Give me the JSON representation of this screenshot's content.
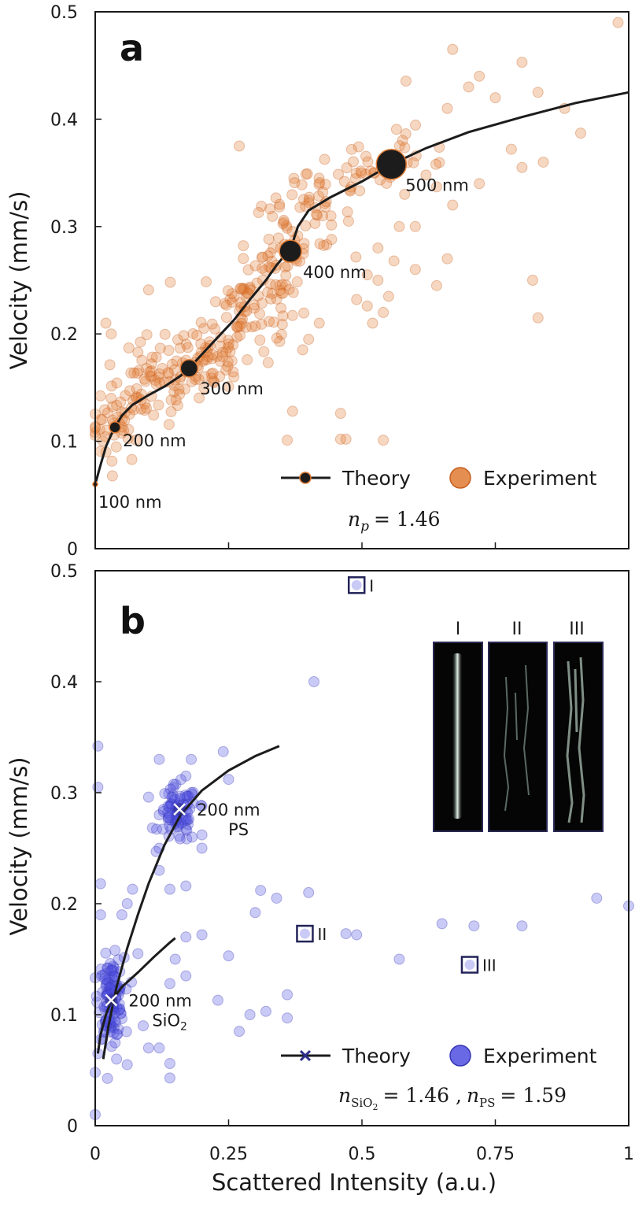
{
  "colors": {
    "theory": "#1c1c1c",
    "experiment_a": "#e07a33",
    "experiment_b": "#4f4fe0",
    "box": "#23235a",
    "marker_b": "#2d2d8a"
  },
  "chart_data": [
    {
      "type": "scatter",
      "panel": "a",
      "panel_label": "a",
      "ylabel": "Velocity (mm/s)",
      "xlabel": "",
      "xlim": [
        0,
        1
      ],
      "ylim": [
        0,
        0.5
      ],
      "x_ticks": [
        0,
        0.25,
        0.5,
        0.75,
        1
      ],
      "y_ticks": [
        0,
        0.1,
        0.2,
        0.3,
        0.4,
        0.5
      ],
      "y_tick_labels": [
        "0",
        "0.1",
        "0.2",
        "0.3",
        "0.4",
        "0.5"
      ],
      "legend": {
        "theory": "Theory",
        "experiment": "Experiment",
        "position": "bottom-right"
      },
      "equation": {
        "symbol": "n",
        "sub": "p",
        "value": "= 1.46"
      },
      "theory_curve": [
        [
          0,
          0.06
        ],
        [
          0.01,
          0.078
        ],
        [
          0.02,
          0.095
        ],
        [
          0.03,
          0.106
        ],
        [
          0.037,
          0.113
        ],
        [
          0.05,
          0.124
        ],
        [
          0.07,
          0.134
        ],
        [
          0.1,
          0.143
        ],
        [
          0.13,
          0.151
        ],
        [
          0.16,
          0.161
        ],
        [
          0.176,
          0.168
        ],
        [
          0.2,
          0.181
        ],
        [
          0.23,
          0.197
        ],
        [
          0.26,
          0.213
        ],
        [
          0.29,
          0.232
        ],
        [
          0.32,
          0.25
        ],
        [
          0.34,
          0.264
        ],
        [
          0.36,
          0.276
        ],
        [
          0.37,
          0.285
        ],
        [
          0.38,
          0.3
        ],
        [
          0.4,
          0.315
        ],
        [
          0.44,
          0.327
        ],
        [
          0.5,
          0.342
        ],
        [
          0.555,
          0.358
        ],
        [
          0.62,
          0.373
        ],
        [
          0.7,
          0.388
        ],
        [
          0.8,
          0.402
        ],
        [
          0.9,
          0.415
        ],
        [
          1.0,
          0.425
        ]
      ],
      "theory_points": [
        {
          "x": 0,
          "y": 0.06,
          "label": "100 nm",
          "r": 3
        },
        {
          "x": 0.037,
          "y": 0.113,
          "label": "200 nm",
          "r": 7
        },
        {
          "x": 0.176,
          "y": 0.168,
          "label": "300 nm",
          "r": 11
        },
        {
          "x": 0.366,
          "y": 0.277,
          "label": "400 nm",
          "r": 14
        },
        {
          "x": 0.555,
          "y": 0.358,
          "label": "500 nm",
          "r": 19
        }
      ],
      "experiment_outliers": [
        [
          0.98,
          0.49
        ],
        [
          0.67,
          0.465
        ],
        [
          0.72,
          0.44
        ],
        [
          0.8,
          0.453
        ],
        [
          0.83,
          0.425
        ],
        [
          0.7,
          0.43
        ],
        [
          0.66,
          0.41
        ],
        [
          0.75,
          0.42
        ],
        [
          0.88,
          0.41
        ],
        [
          0.91,
          0.387
        ],
        [
          0.78,
          0.372
        ],
        [
          0.8,
          0.355
        ],
        [
          0.84,
          0.36
        ],
        [
          0.62,
          0.348
        ],
        [
          0.64,
          0.337
        ],
        [
          0.58,
          0.33
        ],
        [
          0.72,
          0.34
        ],
        [
          0.67,
          0.32
        ],
        [
          0.6,
          0.3
        ],
        [
          0.56,
          0.268
        ],
        [
          0.6,
          0.26
        ],
        [
          0.57,
          0.3
        ],
        [
          0.53,
          0.28
        ],
        [
          0.51,
          0.255
        ],
        [
          0.53,
          0.25
        ],
        [
          0.55,
          0.235
        ],
        [
          0.49,
          0.232
        ],
        [
          0.51,
          0.226
        ],
        [
          0.54,
          0.22
        ],
        [
          0.52,
          0.21
        ],
        [
          0.66,
          0.27
        ],
        [
          0.64,
          0.245
        ],
        [
          0.82,
          0.25
        ],
        [
          0.83,
          0.215
        ],
        [
          0.42,
          0.21
        ],
        [
          0.4,
          0.195
        ],
        [
          0.37,
          0.128
        ],
        [
          0.46,
          0.126
        ],
        [
          0.46,
          0.102
        ],
        [
          0.47,
          0.102
        ],
        [
          0.54,
          0.101
        ],
        [
          0.36,
          0.101
        ],
        [
          0.1,
          0.241
        ],
        [
          0.27,
          0.375
        ],
        [
          0.02,
          0.21
        ],
        [
          0.03,
          0.2
        ],
        [
          0.26,
          0.16
        ],
        [
          0.25,
          0.151
        ]
      ],
      "experiment_clusters": [
        {
          "cx": 0.04,
          "cy": 0.115,
          "sx": 0.025,
          "sy": 0.018,
          "n": 45
        },
        {
          "cx": 0.11,
          "cy": 0.15,
          "sx": 0.04,
          "sy": 0.017,
          "n": 55
        },
        {
          "cx": 0.2,
          "cy": 0.18,
          "sx": 0.045,
          "sy": 0.018,
          "n": 70
        },
        {
          "cx": 0.28,
          "cy": 0.225,
          "sx": 0.04,
          "sy": 0.02,
          "n": 65
        },
        {
          "cx": 0.35,
          "cy": 0.275,
          "sx": 0.025,
          "sy": 0.03,
          "n": 60
        },
        {
          "cx": 0.41,
          "cy": 0.31,
          "sx": 0.035,
          "sy": 0.015,
          "n": 30
        },
        {
          "cx": 0.5,
          "cy": 0.35,
          "sx": 0.05,
          "sy": 0.015,
          "n": 35
        },
        {
          "cx": 0.6,
          "cy": 0.37,
          "sx": 0.04,
          "sy": 0.02,
          "n": 15
        }
      ]
    },
    {
      "type": "scatter",
      "panel": "b",
      "panel_label": "b",
      "ylabel": "Velocity (mm/s)",
      "xlabel": "Scattered Intensity (a.u.)",
      "xlim": [
        0,
        1
      ],
      "ylim": [
        0,
        0.5
      ],
      "x_ticks": [
        0,
        0.25,
        0.5,
        0.75,
        1
      ],
      "x_tick_labels": [
        "0",
        "0.25",
        "0.5",
        "0.75",
        "1"
      ],
      "y_ticks": [
        0,
        0.1,
        0.2,
        0.3,
        0.4,
        0.5
      ],
      "y_tick_labels": [
        "0",
        "0.1",
        "0.2",
        "0.3",
        "0.4",
        "0.5"
      ],
      "legend": {
        "theory": "Theory",
        "experiment": "Experiment",
        "position": "bottom-right"
      },
      "equation": {
        "sym1": "n",
        "sub1": "SiO",
        "sub1b": "2",
        "mid": "= 1.46 ,",
        "sym2": "n",
        "sub2": "PS",
        "end": "= 1.59"
      },
      "theory_curve_ps": [
        [
          0.015,
          0.06
        ],
        [
          0.025,
          0.09
        ],
        [
          0.04,
          0.125
        ],
        [
          0.06,
          0.16
        ],
        [
          0.08,
          0.19
        ],
        [
          0.1,
          0.218
        ],
        [
          0.13,
          0.253
        ],
        [
          0.16,
          0.28
        ],
        [
          0.2,
          0.302
        ],
        [
          0.25,
          0.32
        ],
        [
          0.3,
          0.333
        ],
        [
          0.345,
          0.342
        ]
      ],
      "theory_curve_sio2": [
        [
          0.005,
          0.065
        ],
        [
          0.01,
          0.082
        ],
        [
          0.02,
          0.1
        ],
        [
          0.03,
          0.112
        ],
        [
          0.05,
          0.125
        ],
        [
          0.08,
          0.138
        ],
        [
          0.11,
          0.152
        ],
        [
          0.14,
          0.165
        ],
        [
          0.15,
          0.169
        ]
      ],
      "theory_marks": [
        {
          "x": 0.158,
          "y": 0.285,
          "label1": "200 nm",
          "label2": "PS"
        },
        {
          "x": 0.03,
          "y": 0.113,
          "label1": "200 nm",
          "label2": "SiO",
          "label2_sub": "2"
        }
      ],
      "boxed_points": [
        {
          "x": 0.49,
          "y": 0.487,
          "label": "I"
        },
        {
          "x": 0.393,
          "y": 0.173,
          "label": "II"
        },
        {
          "x": 0.702,
          "y": 0.145,
          "label": "III"
        }
      ],
      "inset_labels": [
        "I",
        "II",
        "III"
      ],
      "experiment_outliers": [
        [
          0.005,
          0.342
        ],
        [
          0.005,
          0.305
        ],
        [
          0.01,
          0.218
        ],
        [
          0.01,
          0.19
        ],
        [
          0.41,
          0.4
        ],
        [
          0.24,
          0.337
        ],
        [
          0.25,
          0.312
        ],
        [
          0.18,
          0.33
        ],
        [
          0.17,
          0.315
        ],
        [
          0.12,
          0.33
        ],
        [
          0.1,
          0.296
        ],
        [
          0.12,
          0.28
        ],
        [
          0.2,
          0.288
        ],
        [
          0.2,
          0.262
        ],
        [
          0.2,
          0.25
        ],
        [
          0.17,
          0.216
        ],
        [
          0.14,
          0.213
        ],
        [
          0.07,
          0.213
        ],
        [
          0.06,
          0.2
        ],
        [
          0.12,
          0.25
        ],
        [
          0.12,
          0.23
        ],
        [
          0.31,
          0.212
        ],
        [
          0.34,
          0.205
        ],
        [
          0.4,
          0.21
        ],
        [
          0.3,
          0.192
        ],
        [
          0.2,
          0.172
        ],
        [
          0.17,
          0.17
        ],
        [
          0.17,
          0.135
        ],
        [
          0.25,
          0.153
        ],
        [
          0.15,
          0.15
        ],
        [
          0.14,
          0.128
        ],
        [
          0.08,
          0.155
        ],
        [
          0.05,
          0.19
        ],
        [
          0.23,
          0.113
        ],
        [
          0.27,
          0.085
        ],
        [
          0.29,
          0.1
        ],
        [
          0.32,
          0.103
        ],
        [
          0.36,
          0.118
        ],
        [
          0.36,
          0.097
        ],
        [
          0.14,
          0.056
        ],
        [
          0.14,
          0.043
        ],
        [
          0.06,
          0.055
        ],
        [
          0.04,
          0.06
        ],
        [
          0.12,
          0.07
        ],
        [
          0.09,
          0.09
        ],
        [
          0.1,
          0.07
        ],
        [
          0.0,
          0.048
        ],
        [
          0.005,
          0.065
        ],
        [
          0.0,
          0.01
        ],
        [
          0.47,
          0.173
        ],
        [
          0.49,
          0.172
        ],
        [
          0.57,
          0.15
        ],
        [
          0.65,
          0.182
        ],
        [
          0.71,
          0.18
        ],
        [
          0.8,
          0.18
        ],
        [
          0.94,
          0.205
        ],
        [
          1.0,
          0.198
        ]
      ],
      "experiment_clusters": [
        {
          "cx": 0.155,
          "cy": 0.28,
          "sx": 0.018,
          "sy": 0.013,
          "n": 85
        },
        {
          "cx": 0.03,
          "cy": 0.115,
          "sx": 0.012,
          "sy": 0.018,
          "n": 120
        }
      ]
    }
  ]
}
